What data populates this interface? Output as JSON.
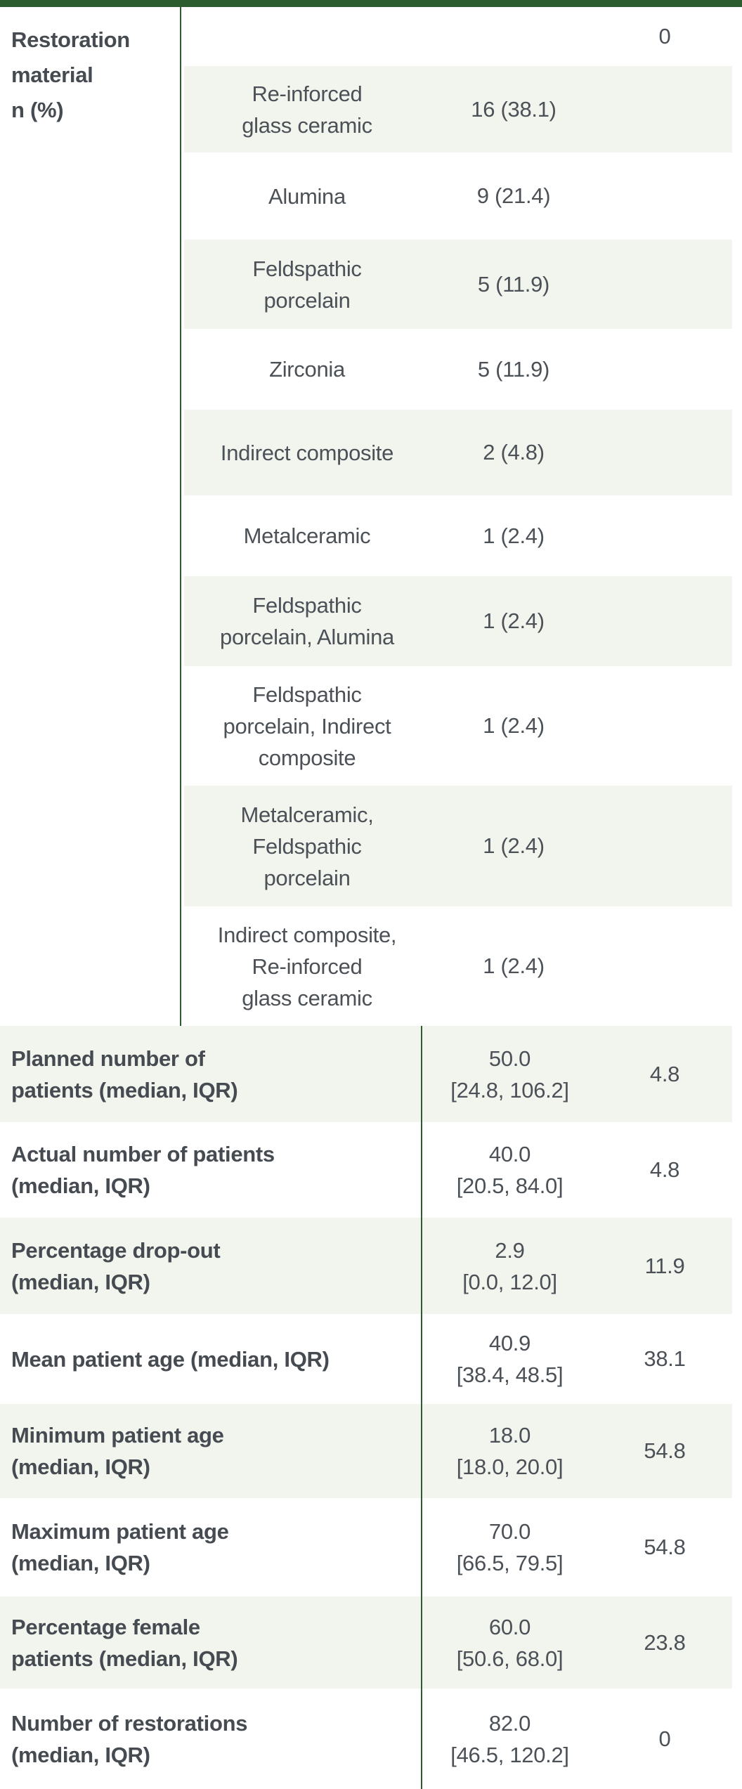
{
  "colors": {
    "accent_green": "#2b5d2e",
    "divider_green": "#2e5c31",
    "row_shade": "#f2f4ee",
    "label_text": "#454b51",
    "body_text": "#4b5156"
  },
  "section1": {
    "row_header": "Restoration\nmaterial\nn (%)",
    "rows": [
      {
        "material": "",
        "count": "",
        "extra": "0"
      },
      {
        "material": "Re-inforced\nglass ceramic",
        "count": "16 (38.1)",
        "extra": ""
      },
      {
        "material": "Alumina",
        "count": "9 (21.4)",
        "extra": ""
      },
      {
        "material": "Feldspathic\nporcelain",
        "count": "5 (11.9)",
        "extra": ""
      },
      {
        "material": "Zirconia",
        "count": "5 (11.9)",
        "extra": ""
      },
      {
        "material": "Indirect composite",
        "count": "2 (4.8)",
        "extra": ""
      },
      {
        "material": "Metalceramic",
        "count": "1 (2.4)",
        "extra": ""
      },
      {
        "material": "Feldspathic\nporcelain, Alumina",
        "count": "1 (2.4)",
        "extra": ""
      },
      {
        "material": "Feldspathic\nporcelain, Indirect\ncomposite",
        "count": "1 (2.4)",
        "extra": ""
      },
      {
        "material": "Metalceramic,\nFeldspathic\nporcelain",
        "count": "1 (2.4)",
        "extra": ""
      },
      {
        "material": "Indirect composite,\nRe-inforced\nglass ceramic",
        "count": "1 (2.4)",
        "extra": ""
      }
    ]
  },
  "section2": {
    "rows": [
      {
        "label": "Planned number of\npatients (median, IQR)",
        "value": "50.0\n[24.8, 106.2]",
        "extra": "4.8"
      },
      {
        "label": "Actual number of patients\n(median, IQR)",
        "value": "40.0\n[20.5, 84.0]",
        "extra": "4.8"
      },
      {
        "label": "Percentage drop-out\n(median, IQR)",
        "value": "2.9\n[0.0, 12.0]",
        "extra": "11.9"
      },
      {
        "label": "Mean patient age (median, IQR)",
        "value": "40.9\n[38.4, 48.5]",
        "extra": "38.1"
      },
      {
        "label": "Minimum patient age\n(median, IQR)",
        "value": "18.0\n[18.0, 20.0]",
        "extra": "54.8"
      },
      {
        "label": "Maximum patient age\n(median, IQR)",
        "value": "70.0\n[66.5, 79.5]",
        "extra": "54.8"
      },
      {
        "label": "Percentage female\npatients (median, IQR)",
        "value": "60.0\n[50.6, 68.0]",
        "extra": "23.8"
      },
      {
        "label": "Number of restorations\n(median, IQR)",
        "value": "82.0\n[46.5, 120.2]",
        "extra": "0"
      }
    ]
  }
}
